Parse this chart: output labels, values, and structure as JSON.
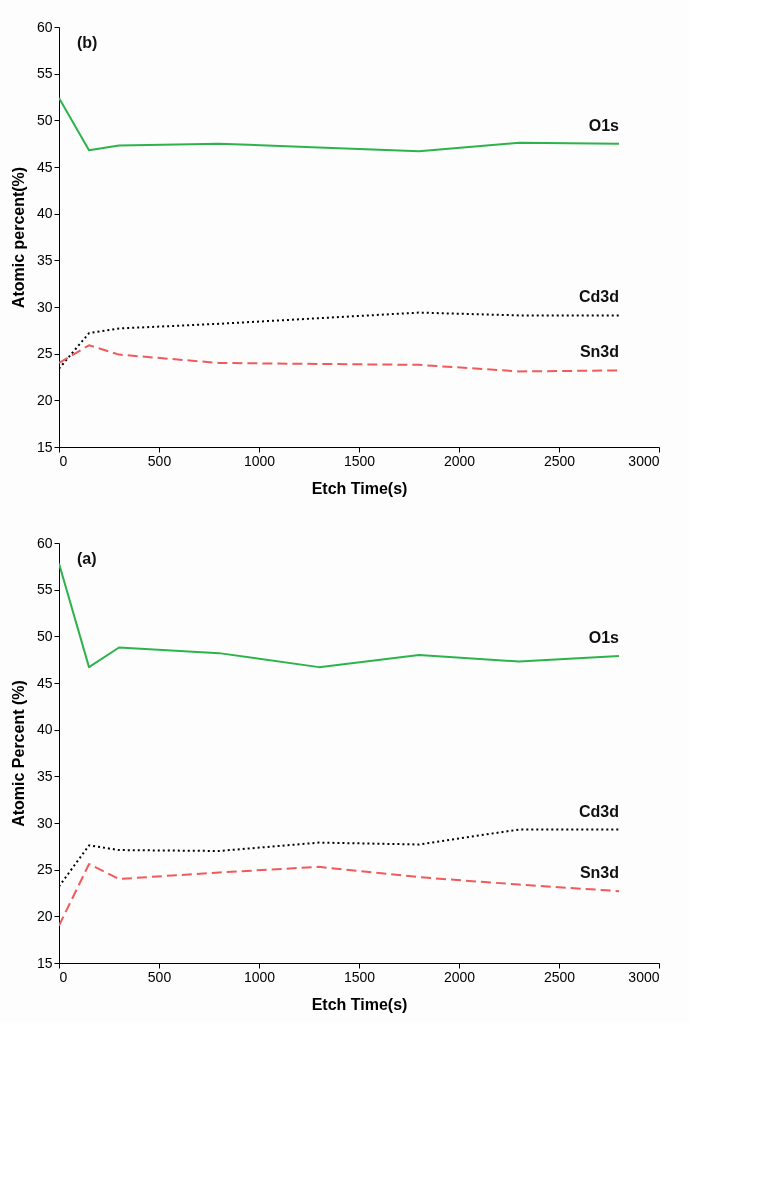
{
  "chart_data": [
    {
      "type": "line",
      "annotations": [
        "(b)"
      ],
      "xlabel": "Etch Time(s)",
      "ylabel": "Atomic percent(%)",
      "x": [
        0,
        150,
        300,
        800,
        1300,
        1800,
        2300,
        2800
      ],
      "xlim": [
        0,
        3000
      ],
      "xticks": [
        0,
        500,
        1000,
        1500,
        2000,
        2500,
        3000
      ],
      "ylim": [
        15,
        60
      ],
      "yticks": [
        15,
        20,
        25,
        30,
        35,
        40,
        45,
        50,
        55,
        60
      ],
      "grid": false,
      "legend": false,
      "marker": "none",
      "series": [
        {
          "name": "O1s",
          "color": "#2db34a",
          "line_style": "solid",
          "values": [
            52.4,
            46.8,
            47.3,
            47.5,
            47.1,
            46.7,
            47.6,
            47.5
          ]
        },
        {
          "name": "Cd3d",
          "color": "#000000",
          "line_style": "dotted",
          "values": [
            23.4,
            27.2,
            27.7,
            28.2,
            28.8,
            29.4,
            29.1,
            29.1
          ]
        },
        {
          "name": "Sn3d",
          "color": "#f05a5a",
          "line_style": "dashed",
          "values": [
            24.0,
            25.9,
            24.9,
            24.0,
            23.9,
            23.8,
            23.1,
            23.2
          ]
        }
      ]
    },
    {
      "type": "line",
      "annotations": [
        "(a)"
      ],
      "xlabel": "Etch Time(s)",
      "ylabel": "Atomic Percent (%)",
      "x": [
        0,
        150,
        300,
        800,
        1300,
        1800,
        2300,
        2800
      ],
      "xlim": [
        0,
        3000
      ],
      "xticks": [
        0,
        500,
        1000,
        1500,
        2000,
        2500,
        3000
      ],
      "ylim": [
        15,
        60
      ],
      "yticks": [
        15,
        20,
        25,
        30,
        35,
        40,
        45,
        50,
        55,
        60
      ],
      "grid": false,
      "legend": false,
      "marker": "none",
      "series": [
        {
          "name": "O1s",
          "color": "#2db34a",
          "line_style": "solid",
          "values": [
            57.8,
            46.7,
            48.8,
            48.2,
            46.7,
            48.0,
            47.3,
            47.9
          ]
        },
        {
          "name": "Cd3d",
          "color": "#000000",
          "line_style": "dotted",
          "values": [
            23.2,
            27.6,
            27.1,
            27.0,
            27.9,
            27.7,
            29.3,
            29.3
          ]
        },
        {
          "name": "Sn3d",
          "color": "#f05a5a",
          "line_style": "dashed",
          "values": [
            19.0,
            25.6,
            24.0,
            24.7,
            25.3,
            24.2,
            23.4,
            22.7
          ]
        }
      ]
    }
  ]
}
